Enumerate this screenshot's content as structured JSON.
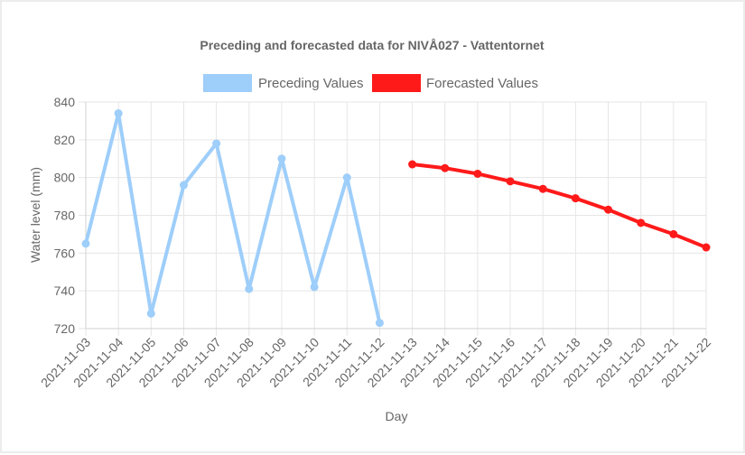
{
  "chart_data": {
    "type": "line",
    "title": "Preceding and forecasted data for NIVÅ027 - Vattentornet",
    "xlabel": "Day",
    "ylabel": "Water level (mm)",
    "ylim": [
      720,
      840
    ],
    "yticks": [
      720,
      740,
      760,
      780,
      800,
      820,
      840
    ],
    "grid": true,
    "legend_position": "top",
    "categories": [
      "2021-11-03",
      "2021-11-04",
      "2021-11-05",
      "2021-11-06",
      "2021-11-07",
      "2021-11-08",
      "2021-11-09",
      "2021-11-10",
      "2021-11-11",
      "2021-11-12",
      "2021-11-13",
      "2021-11-14",
      "2021-11-15",
      "2021-11-16",
      "2021-11-17",
      "2021-11-18",
      "2021-11-19",
      "2021-11-20",
      "2021-11-21",
      "2021-11-22"
    ],
    "series": [
      {
        "name": "Preceding Values",
        "color": "#9ecefa",
        "values": [
          765,
          834,
          728,
          796,
          818,
          741,
          810,
          742,
          800,
          723,
          null,
          null,
          null,
          null,
          null,
          null,
          null,
          null,
          null,
          null
        ]
      },
      {
        "name": "Forecasted Values",
        "color": "#ff1a1a",
        "values": [
          null,
          null,
          null,
          null,
          null,
          null,
          null,
          null,
          null,
          null,
          807,
          805,
          802,
          798,
          794,
          789,
          783,
          776,
          770,
          763
        ]
      }
    ]
  }
}
